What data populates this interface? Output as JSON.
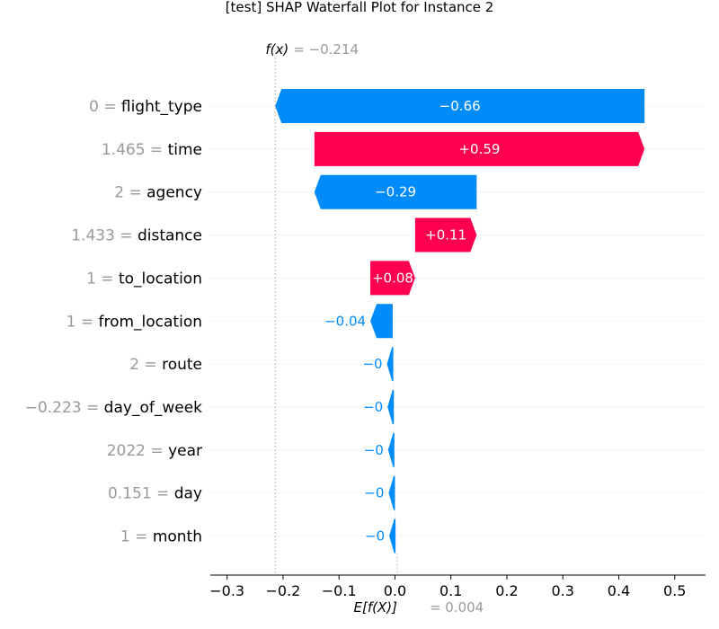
{
  "chart_data": {
    "type": "waterfall",
    "title": "[test] SHAP Waterfall Plot for Instance 2",
    "fx_label": "f(x)",
    "fx_value_text": "= −0.214",
    "fx": -0.214,
    "base_label": "E[f(X)]",
    "base_value_text": "= 0.004",
    "base_value": 0.004,
    "xlim": [
      -0.33,
      0.555
    ],
    "xticks": [
      -0.3,
      -0.2,
      -0.1,
      0.0,
      0.1,
      0.2,
      0.3,
      0.4,
      0.5
    ],
    "xtick_labels": [
      "−0.3",
      "−0.2",
      "−0.1",
      "0.0",
      "0.1",
      "0.2",
      "0.3",
      "0.4",
      "0.5"
    ],
    "positive_color": "#ff0051",
    "negative_color": "#008bfb",
    "features": [
      {
        "value": "0",
        "name": "flight_type",
        "shap": -0.66,
        "label": "−0.66",
        "label_inside": true
      },
      {
        "value": "1.465",
        "name": "time",
        "shap": 0.59,
        "label": "+0.59",
        "label_inside": true
      },
      {
        "value": "2",
        "name": "agency",
        "shap": -0.29,
        "label": "−0.29",
        "label_inside": true
      },
      {
        "value": "1.433",
        "name": "distance",
        "shap": 0.11,
        "label": "+0.11",
        "label_inside": true
      },
      {
        "value": "1",
        "name": "to_location",
        "shap": 0.08,
        "label": "+0.08",
        "label_inside": true
      },
      {
        "value": "1",
        "name": "from_location",
        "shap": -0.04,
        "label": "−0.04",
        "label_inside": false
      },
      {
        "value": "2",
        "name": "route",
        "shap": -0.001,
        "label": "−0",
        "label_inside": false
      },
      {
        "value": "−0.223",
        "name": "day_of_week",
        "shap": -0.001,
        "label": "−0",
        "label_inside": false
      },
      {
        "value": "2022",
        "name": "year",
        "shap": -0.001,
        "label": "−0",
        "label_inside": false
      },
      {
        "value": "0.151",
        "name": "day",
        "shap": -0.001,
        "label": "−0",
        "label_inside": false
      },
      {
        "value": "1",
        "name": "month",
        "shap": -0.001,
        "label": "−0",
        "label_inside": false
      }
    ]
  }
}
